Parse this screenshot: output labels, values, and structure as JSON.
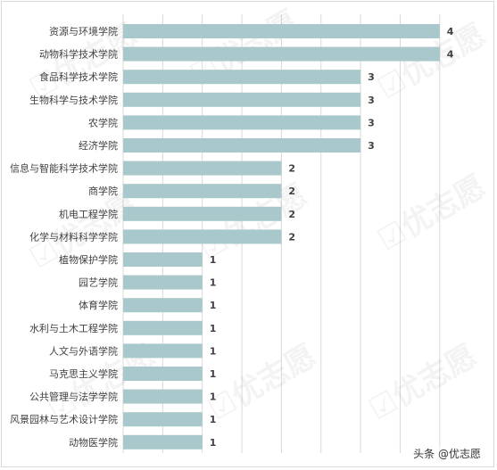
{
  "chart_data": {
    "type": "bar",
    "orientation": "horizontal",
    "categories": [
      "资源与环境学院",
      "动物科学技术学院",
      "食品科学技术学院",
      "生物科学与技术学院",
      "农学院",
      "经济学院",
      "信息与智能科学技术学院",
      "商学院",
      "机电工程学院",
      "化学与材料科学学院",
      "植物保护学院",
      "园艺学院",
      "体育学院",
      "水利与土木工程学院",
      "人文与外语学院",
      "马克思主义学院",
      "公共管理与法学学院",
      "风景园林与艺术设计学院",
      "动物医学院"
    ],
    "values": [
      4,
      4,
      3,
      3,
      3,
      3,
      2,
      2,
      2,
      2,
      1,
      1,
      1,
      1,
      1,
      1,
      1,
      1,
      1
    ],
    "xlim": [
      0,
      4.5
    ],
    "grid": true,
    "bar_color": "#a8c8cb",
    "data_labels": true
  },
  "watermark": "优志愿",
  "credit": "头条 @优志愿"
}
